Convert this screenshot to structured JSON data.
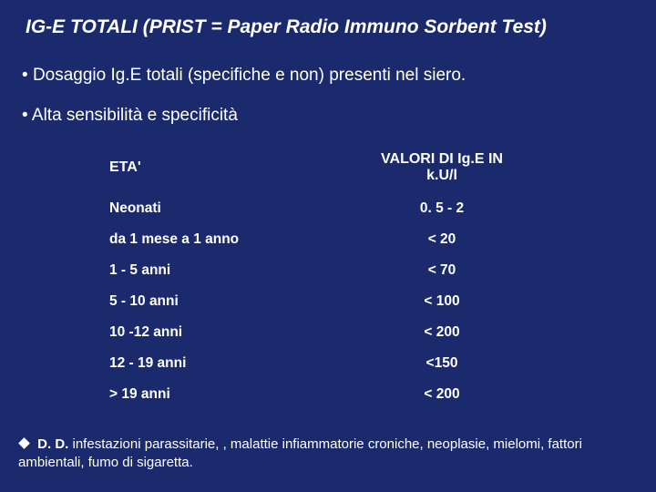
{
  "colors": {
    "background": "#1a2a6c",
    "text": "#ffffff"
  },
  "title": "IG-E TOTALI (PRIST = Paper Radio Immuno Sorbent Test)",
  "bullets": [
    "Dosaggio Ig.E totali (specifiche e non) presenti nel siero.",
    "Alta sensibilità e specificità"
  ],
  "table": {
    "header": {
      "col1": "ETA'",
      "col2": "VALORI DI Ig.E IN k.U/l"
    },
    "rows": [
      {
        "age": "Neonati",
        "value": "0. 5 - 2"
      },
      {
        "age": "da 1 mese a 1 anno",
        "value": "< 20"
      },
      {
        "age": "1 - 5 anni",
        "value": "< 70"
      },
      {
        "age": "5 - 10 anni",
        "value": "< 100"
      },
      {
        "age": "10 -12 anni",
        "value": "< 200"
      },
      {
        "age": "12 - 19 anni",
        "value": "<150"
      },
      {
        "age": "> 19 anni",
        "value": "< 200"
      }
    ]
  },
  "footnote": {
    "lead": "D. D.",
    "rest": " infestazioni parassitarie, , malattie infiammatorie croniche, neoplasie, mielomi, fattori ambientali, fumo di sigaretta."
  }
}
